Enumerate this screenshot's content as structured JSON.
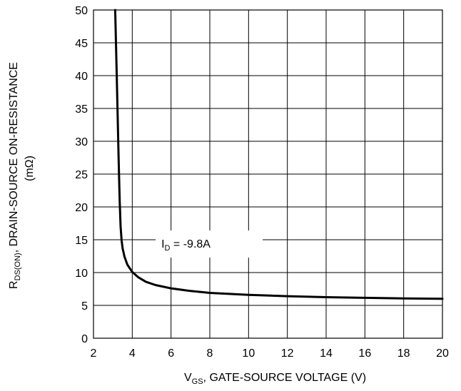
{
  "chart_data": {
    "type": "line",
    "xlabel": {
      "main": "V",
      "sub": "GS",
      "rest": ", GATE-SOURCE VOLTAGE (V)"
    },
    "ylabel": {
      "line1_main": "R",
      "line1_sub": "DS(ON)",
      "line1_rest": ", DRAIN-SOURCE ON-RESISTANCE",
      "line2": "(mΩ)"
    },
    "xlim": [
      2,
      20
    ],
    "ylim": [
      0,
      50
    ],
    "x_ticks": [
      2,
      4,
      6,
      8,
      10,
      12,
      14,
      16,
      18,
      20
    ],
    "y_ticks": [
      0,
      5,
      10,
      15,
      20,
      25,
      30,
      35,
      40,
      45,
      50
    ],
    "grid": true,
    "annotation": {
      "main": "I",
      "sub": "D",
      "rest": " = -9.8A",
      "x": 5.5,
      "y": 13.8
    },
    "series": [
      {
        "x": [
          3.12,
          3.2,
          3.3,
          3.35,
          3.4,
          3.45,
          3.5,
          3.6,
          3.75,
          4.0,
          4.3,
          4.7,
          5.2,
          6.0,
          7.0,
          8.0,
          9.0,
          10.0,
          12.0,
          14.0,
          16.0,
          18.0,
          20.0
        ],
        "y": [
          50,
          40,
          27,
          21,
          17,
          14.9,
          13.7,
          12.4,
          11.2,
          10.1,
          9.3,
          8.6,
          8.1,
          7.6,
          7.2,
          6.9,
          6.75,
          6.6,
          6.4,
          6.25,
          6.15,
          6.05,
          6.0
        ]
      }
    ]
  }
}
